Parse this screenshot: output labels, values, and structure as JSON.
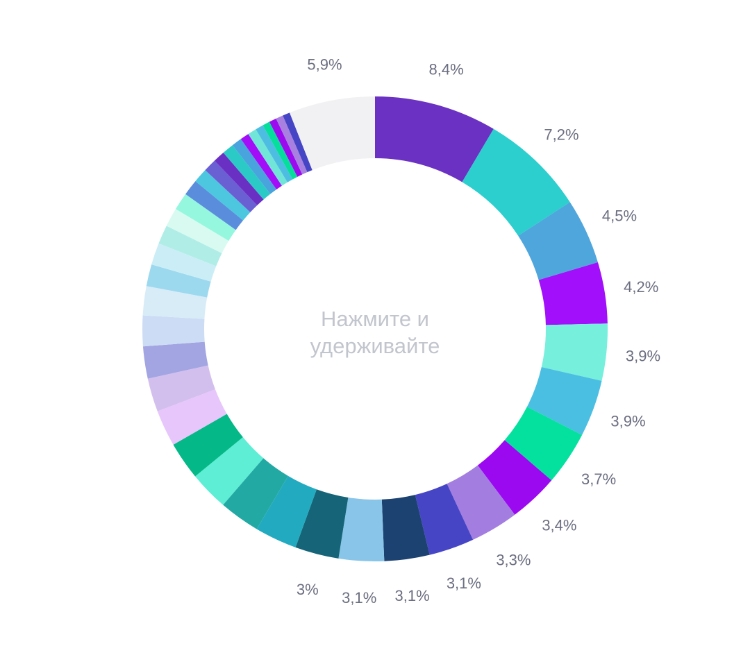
{
  "center": {
    "line1": "Нажмите и",
    "line2": "удерживайте"
  },
  "chart_data": {
    "type": "pie",
    "variant": "donut",
    "title": "",
    "slices": [
      {
        "value": 8.4,
        "label": "8,4%",
        "color": "#6a31c2"
      },
      {
        "value": 7.2,
        "label": "7,2%",
        "color": "#2ccfce"
      },
      {
        "value": 4.5,
        "label": "4,5%",
        "color": "#4ea6dd"
      },
      {
        "value": 4.2,
        "label": "4,2%",
        "color": "#a20ffa"
      },
      {
        "value": 3.9,
        "label": "3,9%",
        "color": "#76efdc"
      },
      {
        "value": 3.9,
        "label": "3,9%",
        "color": "#4bbfe2"
      },
      {
        "value": 3.7,
        "label": "3,7%",
        "color": "#04e19f"
      },
      {
        "value": 3.4,
        "label": "3,4%",
        "color": "#9b09f1"
      },
      {
        "value": 3.3,
        "label": "3,3%",
        "color": "#a37de0"
      },
      {
        "value": 3.1,
        "label": "3,1%",
        "color": "#4645c5"
      },
      {
        "value": 3.1,
        "label": "3,1%",
        "color": "#1c4272"
      },
      {
        "value": 3.1,
        "label": "3,1%",
        "color": "#88c5e8"
      },
      {
        "value": 3.0,
        "label": "3%",
        "color": "#156478"
      },
      {
        "value": 2.9,
        "label": "",
        "color": "#22abc0"
      },
      {
        "value": 2.8,
        "label": "",
        "color": "#23a9a4"
      },
      {
        "value": 2.7,
        "label": "",
        "color": "#5deed5"
      },
      {
        "value": 2.6,
        "label": "",
        "color": "#04b887"
      },
      {
        "value": 2.5,
        "label": "",
        "color": "#e7c6fc"
      },
      {
        "value": 2.3,
        "label": "",
        "color": "#d3bfee"
      },
      {
        "value": 2.2,
        "label": "",
        "color": "#a3a5e2"
      },
      {
        "value": 2.1,
        "label": "",
        "color": "#cbdcf4"
      },
      {
        "value": 2.0,
        "label": "",
        "color": "#d8ecf8"
      },
      {
        "value": 1.5,
        "label": "",
        "color": "#9cd9ee"
      },
      {
        "value": 1.5,
        "label": "",
        "color": "#cbeef6"
      },
      {
        "value": 1.3,
        "label": "",
        "color": "#b0ede6"
      },
      {
        "value": 1.3,
        "label": "",
        "color": "#d8faf1"
      },
      {
        "value": 1.2,
        "label": "",
        "color": "#95f7de"
      },
      {
        "value": 1.1,
        "label": "",
        "color": "#5b8ddd"
      },
      {
        "value": 1.0,
        "label": "",
        "color": "#4cc7df"
      },
      {
        "value": 0.9,
        "label": "",
        "color": "#6a5fd3"
      },
      {
        "value": 0.8,
        "label": "",
        "color": "#6a30c4"
      },
      {
        "value": 0.8,
        "label": "",
        "color": "#2ccac7"
      },
      {
        "value": 0.7,
        "label": "",
        "color": "#49a3dd"
      },
      {
        "value": 0.6,
        "label": "",
        "color": "#a30df7"
      },
      {
        "value": 0.6,
        "label": "",
        "color": "#71e6d8"
      },
      {
        "value": 0.55,
        "label": "",
        "color": "#4dbee2"
      },
      {
        "value": 0.5,
        "label": "",
        "color": "#06de9c"
      },
      {
        "value": 0.5,
        "label": "",
        "color": "#9c0af0"
      },
      {
        "value": 0.5,
        "label": "",
        "color": "#a780e0"
      },
      {
        "value": 0.5,
        "label": "",
        "color": "#4645c5"
      },
      {
        "value": 5.9,
        "label": "5,9%",
        "color": "#f1f1f3"
      }
    ]
  }
}
